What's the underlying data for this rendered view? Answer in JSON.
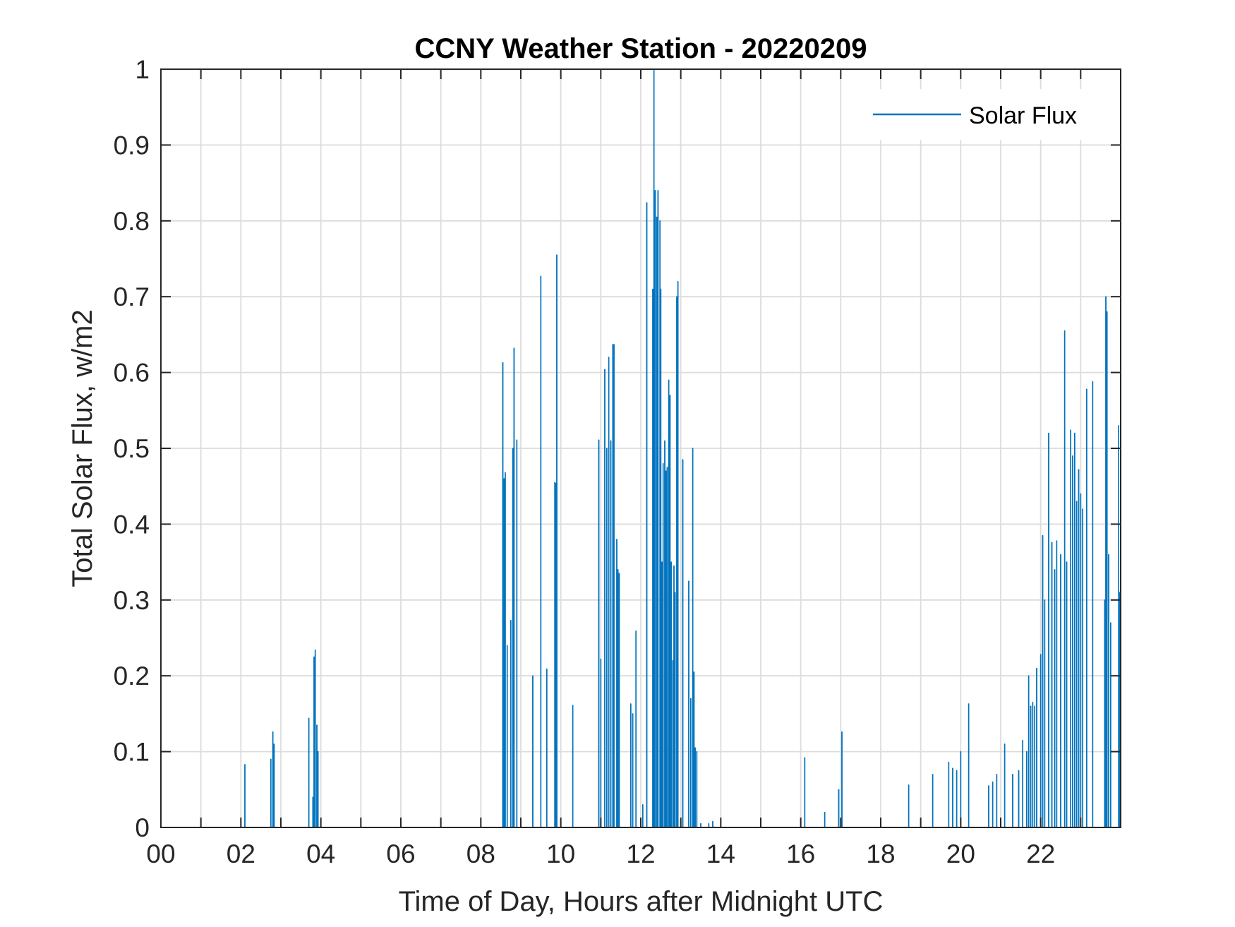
{
  "chart_data": {
    "type": "line",
    "title": "CCNY Weather Station - 20220209",
    "xlabel": "Time of Day, Hours after Midnight UTC",
    "ylabel": "Total Solar Flux, w/m2",
    "xlim": [
      0,
      24
    ],
    "ylim": [
      0,
      1
    ],
    "x_ticks": [
      0,
      2,
      4,
      6,
      8,
      10,
      12,
      14,
      16,
      18,
      20,
      22
    ],
    "x_tick_labels": [
      "00",
      "02",
      "04",
      "06",
      "08",
      "10",
      "12",
      "14",
      "16",
      "18",
      "20",
      "22"
    ],
    "x_grid": [
      0,
      1,
      2,
      3,
      4,
      5,
      6,
      7,
      8,
      9,
      10,
      11,
      12,
      13,
      14,
      15,
      16,
      17,
      18,
      19,
      20,
      21,
      22,
      23
    ],
    "y_ticks": [
      0,
      0.1,
      0.2,
      0.3,
      0.4,
      0.5,
      0.6,
      0.7,
      0.8,
      0.9,
      1
    ],
    "y_tick_labels": [
      "0",
      "0.1",
      "0.2",
      "0.3",
      "0.4",
      "0.5",
      "0.6",
      "0.7",
      "0.8",
      "0.9",
      "1"
    ],
    "grid": true,
    "legend_position": "top-right",
    "series": [
      {
        "name": "Solar Flux",
        "color": "#0072BD",
        "points": [
          [
            2.1,
            0.083
          ],
          [
            2.75,
            0.09
          ],
          [
            2.8,
            0.126
          ],
          [
            2.83,
            0.11
          ],
          [
            3.7,
            0.144
          ],
          [
            3.8,
            0.04
          ],
          [
            3.83,
            0.225
          ],
          [
            3.86,
            0.234
          ],
          [
            3.9,
            0.135
          ],
          [
            3.93,
            0.1
          ],
          [
            8.55,
            0.613
          ],
          [
            8.58,
            0.46
          ],
          [
            8.61,
            0.468
          ],
          [
            8.66,
            0.24
          ],
          [
            8.75,
            0.273
          ],
          [
            8.8,
            0.5
          ],
          [
            8.83,
            0.632
          ],
          [
            8.9,
            0.511
          ],
          [
            9.3,
            0.2
          ],
          [
            9.5,
            0.727
          ],
          [
            9.65,
            0.209
          ],
          [
            9.85,
            0.455
          ],
          [
            9.88,
            0.454
          ],
          [
            9.9,
            0.755
          ],
          [
            10.3,
            0.161
          ],
          [
            10.95,
            0.511
          ],
          [
            11.0,
            0.222
          ],
          [
            11.1,
            0.604
          ],
          [
            11.15,
            0.5
          ],
          [
            11.2,
            0.62
          ],
          [
            11.25,
            0.51
          ],
          [
            11.3,
            0.637
          ],
          [
            11.33,
            0.637
          ],
          [
            11.4,
            0.38
          ],
          [
            11.43,
            0.34
          ],
          [
            11.46,
            0.335
          ],
          [
            11.75,
            0.163
          ],
          [
            11.8,
            0.15
          ],
          [
            11.88,
            0.259
          ],
          [
            12.05,
            0.03
          ],
          [
            12.15,
            0.824
          ],
          [
            12.3,
            0.71
          ],
          [
            12.33,
            1.0
          ],
          [
            12.36,
            0.84
          ],
          [
            12.4,
            0.805
          ],
          [
            12.43,
            0.84
          ],
          [
            12.48,
            0.8
          ],
          [
            12.5,
            0.71
          ],
          [
            12.53,
            0.35
          ],
          [
            12.56,
            0.48
          ],
          [
            12.6,
            0.51
          ],
          [
            12.63,
            0.47
          ],
          [
            12.66,
            0.475
          ],
          [
            12.7,
            0.59
          ],
          [
            12.73,
            0.57
          ],
          [
            12.76,
            0.35
          ],
          [
            12.8,
            0.22
          ],
          [
            12.83,
            0.345
          ],
          [
            12.86,
            0.31
          ],
          [
            12.9,
            0.7
          ],
          [
            12.93,
            0.72
          ],
          [
            13.05,
            0.485
          ],
          [
            13.2,
            0.325
          ],
          [
            13.25,
            0.17
          ],
          [
            13.3,
            0.5
          ],
          [
            13.33,
            0.205
          ],
          [
            13.36,
            0.105
          ],
          [
            13.4,
            0.1
          ],
          [
            13.5,
            0.005
          ],
          [
            13.7,
            0.005
          ],
          [
            13.8,
            0.008
          ],
          [
            16.1,
            0.092
          ],
          [
            16.6,
            0.02
          ],
          [
            16.95,
            0.05
          ],
          [
            17.03,
            0.126
          ],
          [
            18.7,
            0.056
          ],
          [
            19.3,
            0.07
          ],
          [
            19.7,
            0.086
          ],
          [
            19.8,
            0.078
          ],
          [
            19.9,
            0.075
          ],
          [
            20.0,
            0.1
          ],
          [
            20.2,
            0.163
          ],
          [
            20.7,
            0.055
          ],
          [
            20.8,
            0.06
          ],
          [
            20.9,
            0.07
          ],
          [
            21.1,
            0.11
          ],
          [
            21.3,
            0.07
          ],
          [
            21.45,
            0.075
          ],
          [
            21.55,
            0.115
          ],
          [
            21.65,
            0.1
          ],
          [
            21.7,
            0.2
          ],
          [
            21.75,
            0.16
          ],
          [
            21.8,
            0.165
          ],
          [
            21.85,
            0.16
          ],
          [
            21.9,
            0.21
          ],
          [
            22.0,
            0.228
          ],
          [
            22.05,
            0.385
          ],
          [
            22.1,
            0.3
          ],
          [
            22.2,
            0.52
          ],
          [
            22.28,
            0.376
          ],
          [
            22.35,
            0.34
          ],
          [
            22.4,
            0.378
          ],
          [
            22.5,
            0.36
          ],
          [
            22.6,
            0.655
          ],
          [
            22.65,
            0.35
          ],
          [
            22.75,
            0.524
          ],
          [
            22.8,
            0.49
          ],
          [
            22.85,
            0.52
          ],
          [
            22.9,
            0.43
          ],
          [
            22.95,
            0.472
          ],
          [
            23.0,
            0.44
          ],
          [
            23.05,
            0.42
          ],
          [
            23.15,
            0.578
          ],
          [
            23.3,
            0.588
          ],
          [
            23.6,
            0.3
          ],
          [
            23.63,
            0.7
          ],
          [
            23.66,
            0.68
          ],
          [
            23.7,
            0.36
          ],
          [
            23.75,
            0.27
          ],
          [
            23.95,
            0.53
          ],
          [
            23.98,
            0.31
          ]
        ]
      }
    ]
  }
}
